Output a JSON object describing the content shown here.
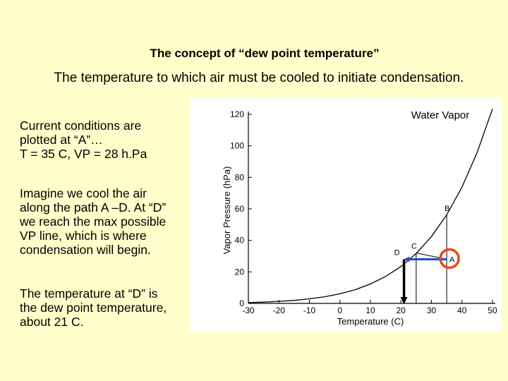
{
  "slide": {
    "title": "The concept of “dew point temperature”",
    "subtitle": "The temperature to which air must be cooled to initiate condensation.",
    "paragraphs": [
      "Current conditions are\nplotted at “A”…\nT = 35 C, VP = 28 h.Pa",
      "Imagine we cool the air\nalong the path A –D. At “D”\nwe reach the max possible\nVP line, which is where\ncondensation will begin.",
      "The temperature at “D” is\nthe dew point temperature,\nabout 21 C."
    ]
  },
  "chart_data": {
    "type": "line",
    "title": "Water Vapor",
    "xlabel": "Temperature (C)",
    "ylabel": "Vapor Pressure (hPa)",
    "xlim": [
      -30,
      50
    ],
    "ylim": [
      0,
      120
    ],
    "x_ticks": [
      -30,
      -20,
      -10,
      0,
      10,
      20,
      30,
      40,
      50
    ],
    "y_ticks": [
      0,
      20,
      40,
      60,
      80,
      100,
      120
    ],
    "grid": false,
    "curve": {
      "x": [
        -30,
        -25,
        -20,
        -15,
        -10,
        -5,
        0,
        5,
        10,
        15,
        20,
        25,
        30,
        35,
        40,
        45,
        50
      ],
      "y": [
        0.5,
        0.8,
        1.3,
        1.9,
        2.9,
        4.2,
        6.1,
        8.7,
        12.3,
        17.1,
        23.4,
        31.7,
        42.4,
        56.2,
        73.8,
        95.9,
        123.4
      ]
    },
    "points": [
      {
        "label": "A",
        "x": 35,
        "y": 28,
        "highlighted": true
      },
      {
        "label": "B",
        "x": 35,
        "y": 56
      },
      {
        "label": "C",
        "x": 25,
        "y": 32
      },
      {
        "label": "D",
        "x": 21,
        "y": 28
      }
    ],
    "arrows": [
      {
        "from": [
          35,
          28
        ],
        "to": [
          21,
          28
        ],
        "color": "#1f4fd1"
      },
      {
        "from": [
          21,
          28
        ],
        "to": [
          21,
          0
        ],
        "color": "#000000"
      }
    ],
    "colors": {
      "curve": "#000000",
      "path_arrow": "#1f4fd1",
      "dewpoint_arrow": "#000000",
      "highlight": "#e8481b"
    }
  }
}
